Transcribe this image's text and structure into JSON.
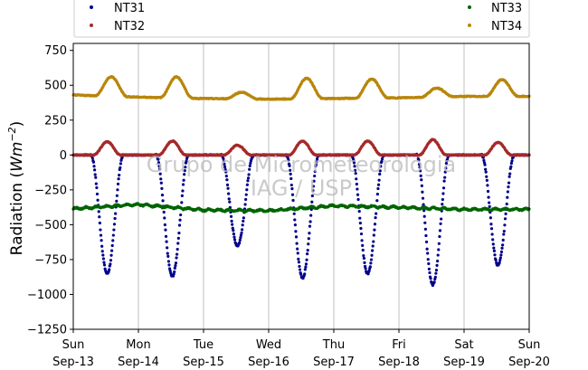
{
  "chart_data": {
    "type": "scatter",
    "title": "",
    "xlabel": "",
    "ylabel": "Radiation (Wm^-2)",
    "ylabel_parts": {
      "text": "Radiation (",
      "var": "Wm",
      "sup": "−2",
      "close": ")"
    },
    "ylim": [
      -1250,
      800
    ],
    "xlim": [
      "2020-09-13",
      "2020-09-20"
    ],
    "grid": "vertical-days",
    "legend_placement": "top",
    "watermark": [
      "Grupo de Micrometeorologia",
      "IAG / USP"
    ],
    "x_ticks": [
      {
        "day": "Sun",
        "date": "Sep-13"
      },
      {
        "day": "Mon",
        "date": "Sep-14"
      },
      {
        "day": "Tue",
        "date": "Sep-15"
      },
      {
        "day": "Wed",
        "date": "Sep-16"
      },
      {
        "day": "Thu",
        "date": "Sep-17"
      },
      {
        "day": "Fri",
        "date": "Sep-18"
      },
      {
        "day": "Sat",
        "date": "Sep-19"
      },
      {
        "day": "Sun",
        "date": "Sep-20"
      }
    ],
    "y_ticks": [
      "750",
      "500",
      "250",
      "0",
      "−250",
      "−500",
      "−750",
      "−1000",
      "−1250"
    ],
    "y_tick_values": [
      750,
      500,
      250,
      0,
      -250,
      -500,
      -750,
      -1000,
      -1250
    ],
    "series": [
      {
        "name": "NT31",
        "color": "#00008b",
        "kind": "daytime_dip",
        "night_value": 0,
        "daily_peaks": [
          -850,
          -870,
          -650,
          -880,
          -850,
          -930,
          -790
        ],
        "noon_hour": 12.5,
        "half_width_hours": 6
      },
      {
        "name": "NT32",
        "color": "#a52a2a",
        "kind": "daytime_bump",
        "night_value": 0,
        "daily_peaks": [
          95,
          100,
          70,
          100,
          100,
          110,
          90
        ],
        "noon_hour": 12.5,
        "half_width_hours": 5
      },
      {
        "name": "NT33",
        "color": "#006400",
        "kind": "near_constant",
        "daily_levels": [
          -385,
          -355,
          -395,
          -400,
          -365,
          -375,
          -390
        ],
        "night_value": -400
      },
      {
        "name": "NT34",
        "color": "#b8860b",
        "kind": "daytime_bump",
        "night_levels": [
          430,
          415,
          405,
          400,
          405,
          410,
          420,
          420
        ],
        "daily_peaks": [
          560,
          560,
          450,
          550,
          545,
          480,
          540
        ],
        "noon_hour": 14,
        "half_width_hours": 6
      }
    ]
  }
}
